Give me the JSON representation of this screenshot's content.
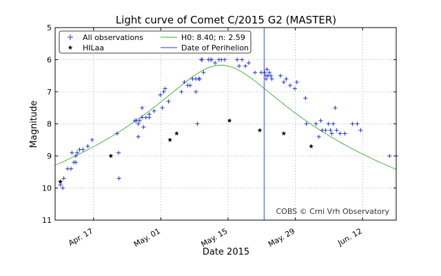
{
  "chart_data": {
    "type": "scatter",
    "title": "Light curve of Comet C/2015 G2 (MASTER)",
    "xlabel": "Date 2015",
    "ylabel": "Magnitude",
    "xlim": [
      0,
      71
    ],
    "ylim": [
      11,
      5
    ],
    "y_inverted": true,
    "grid": true,
    "x_ticks": [
      {
        "value": 8,
        "label": "Apr. 17"
      },
      {
        "value": 22,
        "label": "May. 01"
      },
      {
        "value": 36,
        "label": "May. 15"
      },
      {
        "value": 50,
        "label": "May. 29"
      },
      {
        "value": 64,
        "label": "Jun. 12"
      }
    ],
    "y_ticks": [
      {
        "value": 5,
        "label": "5"
      },
      {
        "value": 6,
        "label": "6"
      },
      {
        "value": 7,
        "label": "7"
      },
      {
        "value": 8,
        "label": "8"
      },
      {
        "value": 9,
        "label": "9"
      },
      {
        "value": 10,
        "label": "10"
      },
      {
        "value": 11,
        "label": "11"
      }
    ],
    "legend": {
      "position": "top-left",
      "entries": [
        {
          "label": "All observations",
          "marker": "+",
          "color": "#2233cc"
        },
        {
          "label": "H0: 8.40; n: 2.59",
          "marker": "line",
          "color": "#33aa33"
        },
        {
          "label": "HILaa",
          "marker": "star",
          "color": "#000000"
        },
        {
          "label": "Date of Perihelion",
          "marker": "line",
          "color": "#2233cc"
        }
      ]
    },
    "perihelion_x": 43.5,
    "model": {
      "name": "H0: 8.40; n: 2.59",
      "peak_x": 34.5,
      "peak_mag": 6.17
    },
    "credit": "COBS © Crni Vrh Observatory",
    "series": [
      {
        "name": "All observations",
        "marker": "+",
        "color": "#2233cc",
        "points": [
          [
            1.1,
            9.9
          ],
          [
            1.6,
            10.0
          ],
          [
            1.8,
            9.7
          ],
          [
            2.6,
            9.4
          ],
          [
            3.3,
            9.4
          ],
          [
            3.5,
            8.9
          ],
          [
            3.9,
            9.2
          ],
          [
            4.3,
            9.2
          ],
          [
            4.3,
            9.0
          ],
          [
            4.6,
            8.9
          ],
          [
            5.1,
            8.8
          ],
          [
            5.8,
            8.8
          ],
          [
            6.8,
            8.7
          ],
          [
            7.7,
            8.5
          ],
          [
            12.9,
            8.3
          ],
          [
            13.2,
            8.9
          ],
          [
            13.3,
            9.7
          ],
          [
            16.6,
            7.9
          ],
          [
            16.9,
            7.9
          ],
          [
            17.3,
            8.4
          ],
          [
            17.3,
            8.0
          ],
          [
            17.6,
            7.9
          ],
          [
            18.1,
            7.5
          ],
          [
            18.1,
            7.8
          ],
          [
            18.4,
            8.1
          ],
          [
            18.9,
            7.8
          ],
          [
            19.6,
            7.8
          ],
          [
            19.6,
            7.7
          ],
          [
            20.6,
            7.6
          ],
          [
            21.9,
            7.1
          ],
          [
            22.3,
            7.5
          ],
          [
            22.6,
            7.0
          ],
          [
            22.9,
            6.9
          ],
          [
            23.6,
            7.3
          ],
          [
            26.3,
            7.0
          ],
          [
            26.9,
            6.7
          ],
          [
            27.6,
            6.8
          ],
          [
            28.1,
            6.8
          ],
          [
            28.6,
            6.6
          ],
          [
            29.3,
            6.6
          ],
          [
            29.6,
            8.0
          ],
          [
            29.9,
            6.6
          ],
          [
            29.3,
            7.0
          ],
          [
            30.1,
            6.6
          ],
          [
            30.4,
            6.0
          ],
          [
            30.6,
            6.0
          ],
          [
            30.9,
            6.4
          ],
          [
            31.9,
            6.0
          ],
          [
            32.3,
            6.0
          ],
          [
            32.6,
            6.0
          ],
          [
            33.3,
            6.1
          ],
          [
            34.1,
            6.0
          ],
          [
            34.6,
            6.0
          ],
          [
            35.3,
            6.0
          ],
          [
            37.9,
            6.0
          ],
          [
            38.3,
            6.2
          ],
          [
            38.9,
            6.0
          ],
          [
            39.6,
            6.2
          ],
          [
            40.3,
            6.1
          ],
          [
            41.6,
            6.4
          ],
          [
            42.9,
            6.4
          ],
          [
            43.6,
            6.4
          ],
          [
            43.9,
            6.5
          ],
          [
            43.9,
            6.6
          ],
          [
            44.1,
            6.3
          ],
          [
            44.3,
            6.5
          ],
          [
            44.6,
            6.4
          ],
          [
            44.9,
            6.5
          ],
          [
            45.1,
            6.6
          ],
          [
            46.9,
            6.5
          ],
          [
            47.6,
            6.7
          ],
          [
            48.1,
            6.6
          ],
          [
            48.9,
            6.8
          ],
          [
            49.9,
            6.9
          ],
          [
            50.3,
            6.7
          ],
          [
            52.1,
            7.2
          ],
          [
            52.3,
            8.0
          ],
          [
            54.3,
            8.0
          ],
          [
            54.9,
            8.4
          ],
          [
            55.3,
            7.9
          ],
          [
            55.6,
            8.2
          ],
          [
            56.3,
            8.2
          ],
          [
            56.9,
            8.0
          ],
          [
            57.3,
            8.2
          ],
          [
            57.6,
            8.3
          ],
          [
            57.9,
            8.0
          ],
          [
            58.3,
            7.5
          ],
          [
            58.6,
            8.2
          ],
          [
            59.3,
            8.3
          ],
          [
            60.3,
            8.3
          ],
          [
            61.9,
            8.0
          ],
          [
            62.9,
            8.0
          ],
          [
            63.6,
            8.2
          ],
          [
            69.6,
            9.0
          ],
          [
            71.0,
            9.0
          ]
        ]
      },
      {
        "name": "HILaa",
        "marker": "star",
        "color": "#000000",
        "points": [
          [
            1.1,
            9.8
          ],
          [
            11.6,
            9.0
          ],
          [
            23.9,
            8.5
          ],
          [
            25.3,
            8.3
          ],
          [
            36.3,
            7.9
          ],
          [
            42.6,
            8.2
          ],
          [
            47.6,
            8.3
          ],
          [
            53.3,
            8.7
          ]
        ]
      }
    ]
  }
}
